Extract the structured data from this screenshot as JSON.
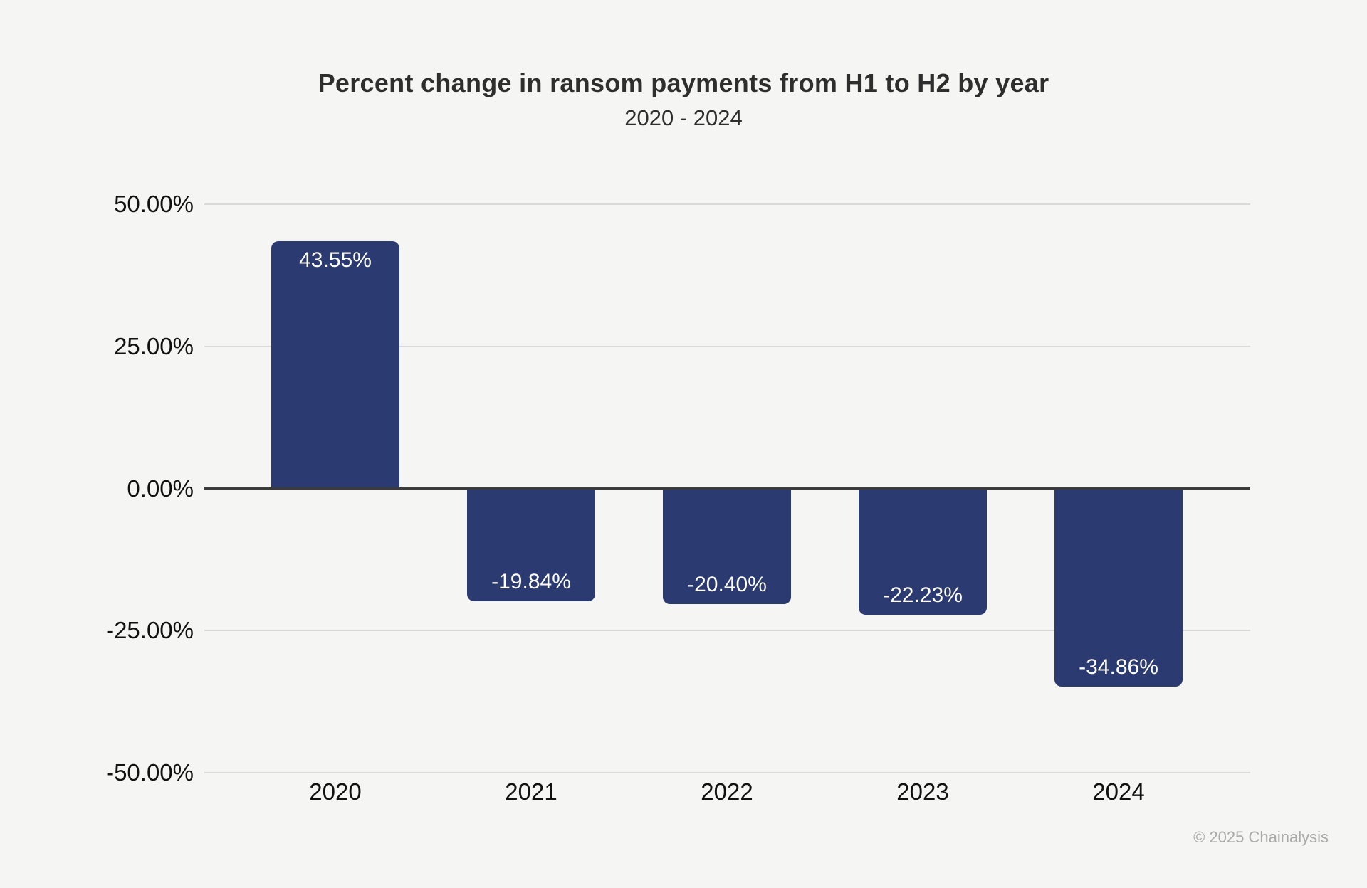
{
  "chart_data": {
    "type": "bar",
    "title": "Percent change in ransom payments from H1 to H2 by year",
    "subtitle": "2020 - 2024",
    "categories": [
      "2020",
      "2021",
      "2022",
      "2023",
      "2024"
    ],
    "values": [
      43.55,
      -19.84,
      -20.4,
      -22.23,
      -34.86
    ],
    "value_labels": [
      "43.55%",
      "-19.84%",
      "-20.40%",
      "-22.23%",
      "-34.86%"
    ],
    "xlabel": "",
    "ylabel": "",
    "ylim": [
      -50,
      50
    ],
    "yticks": [
      {
        "value": 50,
        "label": "50.00%"
      },
      {
        "value": 25,
        "label": "25.00%"
      },
      {
        "value": 0,
        "label": "0.00%"
      },
      {
        "value": -25,
        "label": "-25.00%"
      },
      {
        "value": -50,
        "label": "-50.00%"
      }
    ],
    "grid": true,
    "legend": false,
    "bar_color": "#2b3a70",
    "bar_label_color": "#ffffff",
    "background_color": "#f5f5f4",
    "zero_line_color": "#3b3b3b",
    "gridline_color": "#d9d9d9"
  },
  "footer": {
    "copyright": "© 2025 Chainalysis"
  }
}
